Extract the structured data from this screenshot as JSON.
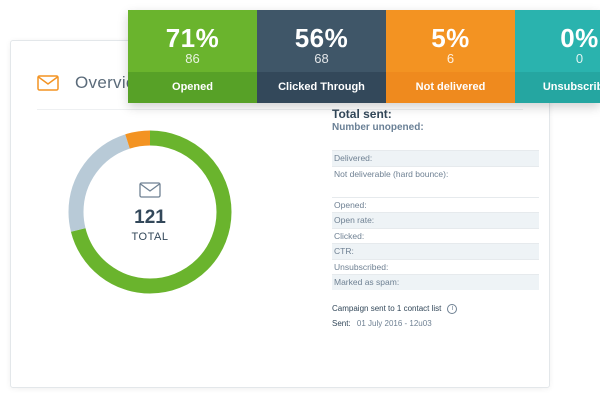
{
  "overview": {
    "title": "Overview"
  },
  "donut": {
    "total": "121",
    "total_label": "TOTAL",
    "segments": [
      {
        "name": "opened",
        "value": 86,
        "color": "#6ab42d"
      },
      {
        "name": "unopened",
        "value": 29,
        "color": "#b8cad7"
      },
      {
        "name": "not-delivered",
        "value": 6,
        "color": "#f39322"
      }
    ]
  },
  "stats": {
    "total_sent_label": "Total sent:",
    "unopened_label": "Number unopened:",
    "rows": [
      {
        "label": "Delivered:",
        "shade": true,
        "tall": false
      },
      {
        "label": "Not deliverable (hard bounce):",
        "shade": false,
        "tall": true
      },
      {
        "label": "Opened:",
        "shade": false,
        "tall": false
      },
      {
        "label": "Open rate:",
        "shade": true,
        "tall": false
      },
      {
        "label": "Clicked:",
        "shade": false,
        "tall": false
      },
      {
        "label": "CTR:",
        "shade": true,
        "tall": false
      },
      {
        "label": "Unsubscribed:",
        "shade": false,
        "tall": false
      },
      {
        "label": "Marked as spam:",
        "shade": true,
        "tall": false
      }
    ],
    "campaign": "Campaign sent to 1 contact list",
    "info_glyph": "i",
    "sent_label": "Sent:",
    "sent_value": "01 July 2016 - 12u03"
  },
  "tiles": [
    {
      "pct": "71%",
      "count": "86",
      "label": "Opened",
      "top_color": "#6ab42d",
      "bottom_color": "#57a127"
    },
    {
      "pct": "56%",
      "count": "68",
      "label": "Clicked Through",
      "top_color": "#3f5668",
      "bottom_color": "#33485a"
    },
    {
      "pct": "5%",
      "count": "6",
      "label": "Not delivered",
      "top_color": "#f39322",
      "bottom_color": "#ef8a1e"
    },
    {
      "pct": "0%",
      "count": "0",
      "label": "Unsubscribed",
      "top_color": "#2ab3ae",
      "bottom_color": "#25a6a1"
    }
  ],
  "colors": {
    "accent_orange": "#f39322",
    "text_dark": "#33485a"
  }
}
